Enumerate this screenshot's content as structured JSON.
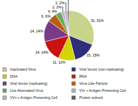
{
  "chart_data": {
    "type": "pie",
    "categories": [
      "Inactivated Virus",
      "Viral Vector (non-replicating)",
      "DNA",
      "RNA",
      "Viral Vector (replicating)",
      "Virus Like Particle",
      "Live Attenuated Virus",
      "VVr + Antigen Presenting Cell",
      "VVn + Antigen Presenting Cell",
      "Protein subunit"
    ],
    "values": [
      31,
      15,
      11,
      14,
      14,
      6,
      4,
      2,
      2,
      1
    ],
    "value_labels": [
      "31, 31%",
      "15, 15%",
      "11, 11%",
      "14, 14%",
      "14, 14%",
      "6, 6%",
      "4, 4%",
      "2, 2%",
      "2, 2%",
      "1, 1%"
    ],
    "colors": [
      "#c8d48a",
      "#2e2e7a",
      "#d4d400",
      "#cc1111",
      "#7a3a8a",
      "#b86010",
      "#6aaa5a",
      "#b0b8d0",
      "#d0b0b8",
      "#606060"
    ],
    "data_labels": true,
    "legend": "bottom"
  }
}
